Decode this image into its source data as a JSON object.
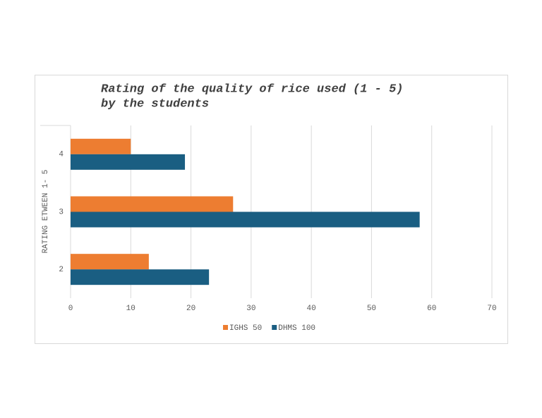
{
  "chart_data": {
    "type": "hbar",
    "title": [
      "Rating of the quality of rice used (1 - 5)",
      "by the students"
    ],
    "y_label": "RATING ETWEEN 1- 5",
    "categories": [
      "4",
      "3",
      "2"
    ],
    "series": [
      {
        "name": "IGHS 50",
        "color": "#ed7d31",
        "values": [
          10,
          27,
          13
        ]
      },
      {
        "name": "DHMS 100",
        "color": "#1a5e82",
        "values": [
          19,
          58,
          23
        ]
      }
    ],
    "xlim": [
      0,
      70
    ],
    "xticks": [
      0,
      10,
      20,
      30,
      40,
      50,
      60,
      70
    ],
    "grid": true
  }
}
